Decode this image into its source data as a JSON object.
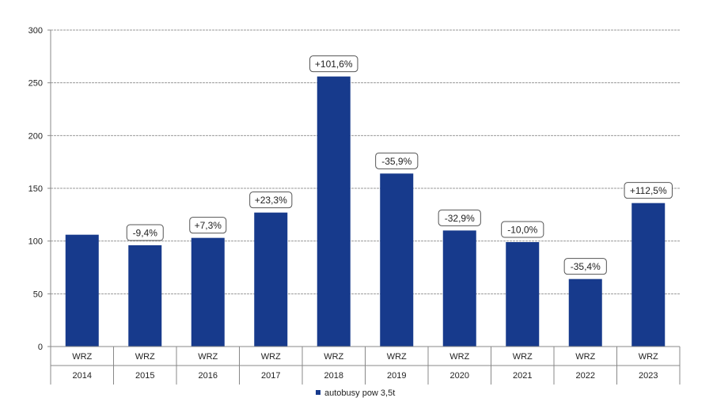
{
  "chart_data": {
    "type": "bar",
    "categories_top": [
      "WRZ",
      "WRZ",
      "WRZ",
      "WRZ",
      "WRZ",
      "WRZ",
      "WRZ",
      "WRZ",
      "WRZ",
      "WRZ"
    ],
    "categories": [
      "2014",
      "2015",
      "2016",
      "2017",
      "2018",
      "2019",
      "2020",
      "2021",
      "2022",
      "2023"
    ],
    "series": [
      {
        "name": "autobusy pow 3,5t",
        "values": [
          106,
          96,
          103,
          127,
          256,
          164,
          110,
          99,
          64,
          136
        ],
        "labels": [
          "",
          "-9,4%",
          "+7,3%",
          "+23,3%",
          "+101,6%",
          "-35,9%",
          "-32,9%",
          "-10,0%",
          "-35,4%",
          "+112,5%"
        ]
      }
    ],
    "ylim": [
      0,
      300
    ],
    "yticks": [
      "0",
      "50",
      "100",
      "150",
      "200",
      "250",
      "300"
    ],
    "ytick_values": [
      0,
      50,
      100,
      150,
      200,
      250,
      300
    ],
    "grid": "horizontal",
    "legend_position": "bottom",
    "colors": {
      "bar": "#173a8c",
      "grid": "#9a9a9a",
      "axis": "#888888",
      "label_border": "#555555"
    }
  }
}
